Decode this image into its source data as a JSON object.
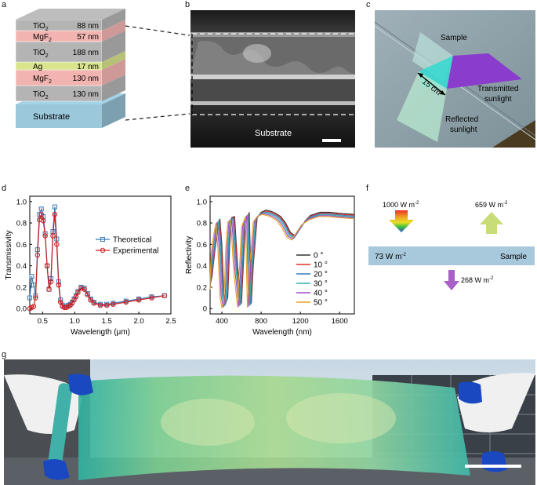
{
  "panels": {
    "a": {
      "label": "a",
      "layers": [
        {
          "name": "TiO2",
          "sub": "2",
          "base": "TiO",
          "thickness": "88 nm",
          "color": "#b4b4b4"
        },
        {
          "name": "MgF2",
          "sub": "2",
          "base": "MgF",
          "thickness": "57 nm",
          "color": "#f2b4b0"
        },
        {
          "name": "TiO2",
          "sub": "2",
          "base": "TiO",
          "thickness": "188 nm",
          "color": "#b4b4b4"
        },
        {
          "name": "Ag",
          "sub": "",
          "base": "Ag",
          "thickness": "17 nm",
          "color": "#d9e48c"
        },
        {
          "name": "MgF2",
          "sub": "2",
          "base": "MgF",
          "thickness": "130 nm",
          "color": "#f2b4b0"
        },
        {
          "name": "TiO2",
          "sub": "2",
          "base": "TiO",
          "thickness": "130 nm",
          "color": "#b4b4b4"
        }
      ],
      "substrate_label": "Substrate",
      "substrate_color": "#9cc8dc"
    },
    "b": {
      "label": "b",
      "substrate_label": "Substrate"
    },
    "c": {
      "label": "c",
      "sample": "Sample",
      "distance": "15 cm",
      "transmitted": "Transmitted sunlight",
      "transmitted_l1": "Transmitted",
      "transmitted_l2": "sunlight",
      "reflected_l1": "Reflected",
      "reflected_l2": "sunlight"
    },
    "d": {
      "label": "d"
    },
    "e": {
      "label": "e"
    },
    "f": {
      "label": "f",
      "incident": "1000 W m",
      "reflected": "659 W m",
      "absorbed": "73 W m",
      "transmitted": "268 W m",
      "sup": "-2",
      "sample": "Sample"
    },
    "g": {
      "label": "g"
    }
  },
  "chart_data": [
    {
      "type": "line",
      "panel": "d",
      "xlabel": "Wavelength (μm)",
      "ylabel": "Transmissivity",
      "x_ticks": [
        "0.5",
        "1.0",
        "1.5",
        "2.0",
        "2.5"
      ],
      "y_ticks": [
        "0.0",
        "0.2",
        "0.4",
        "0.6",
        "0.8",
        "1.0"
      ],
      "xlim": [
        0.3,
        2.5
      ],
      "ylim": [
        -0.05,
        1.05
      ],
      "legend": "center-right",
      "series": [
        {
          "name": "Theoretical",
          "color": "#3a7ab8",
          "marker": "square",
          "x": [
            0.3,
            0.33,
            0.36,
            0.39,
            0.42,
            0.45,
            0.48,
            0.51,
            0.54,
            0.57,
            0.6,
            0.63,
            0.66,
            0.69,
            0.72,
            0.75,
            0.78,
            0.81,
            0.84,
            0.87,
            0.9,
            0.93,
            0.96,
            0.99,
            1.02,
            1.05,
            1.1,
            1.15,
            1.2,
            1.25,
            1.3,
            1.4,
            1.5,
            1.6,
            1.8,
            2.0,
            2.2,
            2.4
          ],
          "y": [
            0.1,
            0.3,
            0.22,
            0.12,
            0.55,
            0.88,
            0.93,
            0.86,
            0.7,
            0.4,
            0.18,
            0.28,
            0.72,
            0.95,
            0.65,
            0.25,
            0.08,
            0.03,
            0.02,
            0.02,
            0.03,
            0.04,
            0.06,
            0.09,
            0.12,
            0.16,
            0.2,
            0.19,
            0.14,
            0.09,
            0.06,
            0.04,
            0.04,
            0.05,
            0.07,
            0.09,
            0.11,
            0.12
          ]
        },
        {
          "name": "Experimental",
          "color": "#d02020",
          "marker": "circle",
          "x": [
            0.3,
            0.33,
            0.36,
            0.39,
            0.42,
            0.45,
            0.48,
            0.51,
            0.54,
            0.57,
            0.6,
            0.63,
            0.66,
            0.69,
            0.72,
            0.75,
            0.78,
            0.81,
            0.84,
            0.87,
            0.9,
            0.93,
            0.96,
            0.99,
            1.02,
            1.05,
            1.1,
            1.15,
            1.2,
            1.25,
            1.3,
            1.4,
            1.5,
            1.6,
            1.8,
            2.0,
            2.2,
            2.4
          ],
          "y": [
            0.0,
            0.01,
            0.02,
            0.1,
            0.5,
            0.83,
            0.88,
            0.82,
            0.68,
            0.4,
            0.18,
            0.25,
            0.68,
            0.88,
            0.6,
            0.22,
            0.06,
            0.02,
            0.01,
            0.01,
            0.02,
            0.03,
            0.05,
            0.08,
            0.11,
            0.15,
            0.19,
            0.18,
            0.13,
            0.08,
            0.05,
            0.03,
            0.03,
            0.04,
            0.06,
            0.08,
            0.1,
            0.12
          ]
        }
      ]
    },
    {
      "type": "line",
      "panel": "e",
      "xlabel": "Wavelength (nm)",
      "ylabel": "Reflectivity",
      "x_ticks": [
        "400",
        "800",
        "1200",
        "1600"
      ],
      "y_ticks": [
        "0",
        "0.2",
        "0.4",
        "0.6",
        "0.8",
        "1.0"
      ],
      "xlim": [
        280,
        1750
      ],
      "ylim": [
        -0.05,
        1.05
      ],
      "legend": "center-right",
      "series": [
        {
          "name": "0 °",
          "color": "#333333",
          "shift": 0
        },
        {
          "name": "10 °",
          "color": "#e0302a",
          "shift": -4
        },
        {
          "name": "20 °",
          "color": "#3a7ab8",
          "shift": -10
        },
        {
          "name": "30 °",
          "color": "#38b0a8",
          "shift": -18
        },
        {
          "name": "40 °",
          "color": "#a04cc8",
          "shift": -28
        },
        {
          "name": "50 °",
          "color": "#e8a020",
          "shift": -40
        }
      ],
      "base_curve": {
        "x": [
          280,
          300,
          330,
          360,
          380,
          400,
          420,
          440,
          460,
          480,
          500,
          530,
          560,
          600,
          640,
          680,
          700,
          720,
          760,
          800,
          850,
          900,
          950,
          1000,
          1050,
          1100,
          1150,
          1200,
          1250,
          1300,
          1400,
          1500,
          1600,
          1750
        ],
        "y": [
          0.22,
          0.3,
          0.55,
          0.75,
          0.84,
          0.6,
          0.15,
          0.05,
          0.1,
          0.6,
          0.85,
          0.86,
          0.4,
          0.05,
          0.8,
          0.9,
          0.05,
          0.4,
          0.85,
          0.9,
          0.92,
          0.91,
          0.89,
          0.86,
          0.8,
          0.71,
          0.68,
          0.75,
          0.82,
          0.87,
          0.9,
          0.9,
          0.89,
          0.88
        ]
      }
    }
  ]
}
